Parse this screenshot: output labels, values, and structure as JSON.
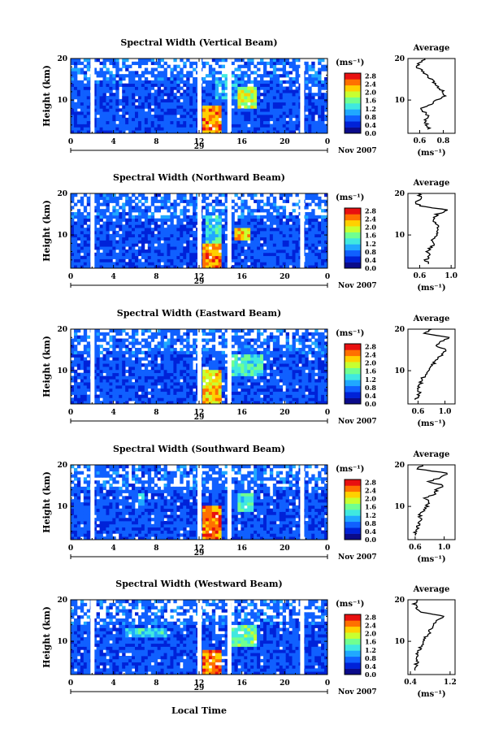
{
  "figure": {
    "xlabel": "Local Time",
    "date_label": "Nov 2007",
    "day_label": "29"
  },
  "colors": {
    "scale": [
      "#0b0b8a",
      "#0022d8",
      "#1060ff",
      "#20a8ff",
      "#40e8e0",
      "#70ff90",
      "#c8ff30",
      "#ffd000",
      "#ff7000",
      "#e81010"
    ],
    "axis": "#000000",
    "missing": "#ffffff"
  },
  "chart_data": [
    {
      "type": "heatmap",
      "title": "Spectral Width (Vertical Beam)",
      "ylabel": "Height (km)",
      "xlim": [
        0,
        24
      ],
      "ylim": [
        2,
        20
      ],
      "x_ticks": [
        "0",
        "4",
        "8",
        "12",
        "16",
        "20",
        "0"
      ],
      "y_ticks": [
        "10",
        "20"
      ],
      "cbar_unit": "(ms⁻¹)",
      "cbar_ticks": [
        "0.0",
        "0.4",
        "0.8",
        "1.2",
        "1.6",
        "2.0",
        "2.4",
        "2.8"
      ],
      "gaps_hours": [
        2.0,
        12.0,
        14.8,
        21.6
      ],
      "hot_regions": [
        {
          "t": [
            12.4,
            14.0
          ],
          "h": [
            2,
            9
          ],
          "level": 0.95
        },
        {
          "t": [
            15.5,
            17.5
          ],
          "h": [
            8,
            13
          ],
          "level": 0.75
        },
        {
          "t": [
            13.5,
            15.5
          ],
          "h": [
            10,
            16
          ],
          "level": 0.5
        }
      ],
      "profile": {
        "title": "Average",
        "xlabel": "(ms⁻¹)",
        "x_ticks": [
          "0.6",
          "0.8"
        ],
        "y_ticks": [
          "10",
          "20"
        ],
        "xlim": [
          0.5,
          0.9
        ],
        "heights": [
          3,
          4,
          5,
          6,
          7,
          8,
          9,
          10,
          11,
          12,
          13,
          14,
          15,
          16,
          17,
          18,
          19,
          20
        ],
        "values": [
          0.68,
          0.66,
          0.65,
          0.67,
          0.64,
          0.62,
          0.7,
          0.74,
          0.82,
          0.8,
          0.76,
          0.72,
          0.7,
          0.66,
          0.62,
          0.58,
          0.6,
          0.64
        ]
      }
    },
    {
      "type": "heatmap",
      "title": "Spectral Width (Northward Beam)",
      "ylabel": "Height (km)",
      "xlim": [
        0,
        24
      ],
      "ylim": [
        2,
        20
      ],
      "x_ticks": [
        "0",
        "4",
        "8",
        "12",
        "16",
        "20",
        "0"
      ],
      "y_ticks": [
        "10",
        "20"
      ],
      "cbar_unit": "(ms⁻¹)",
      "cbar_ticks": [
        "0.0",
        "0.4",
        "0.8",
        "1.2",
        "1.6",
        "2.0",
        "2.4",
        "2.8"
      ],
      "gaps_hours": [
        2.0,
        12.0,
        14.8,
        21.6
      ],
      "hot_regions": [
        {
          "t": [
            12.3,
            14.2
          ],
          "h": [
            2,
            8
          ],
          "level": 0.95
        },
        {
          "t": [
            15.3,
            16.8
          ],
          "h": [
            9,
            12
          ],
          "level": 0.85
        },
        {
          "t": [
            12.5,
            14.0
          ],
          "h": [
            8,
            15
          ],
          "level": 0.55
        }
      ],
      "profile": {
        "title": "Average",
        "xlabel": "(ms⁻¹)",
        "x_ticks": [
          "0.6",
          "1.0"
        ],
        "y_ticks": [
          "10",
          "20"
        ],
        "xlim": [
          0.45,
          1.05
        ],
        "heights": [
          3,
          4,
          5,
          6,
          7,
          8,
          9,
          10,
          11,
          12,
          13,
          14,
          15,
          16,
          17,
          18,
          19,
          20
        ],
        "values": [
          0.7,
          0.68,
          0.72,
          0.7,
          0.74,
          0.78,
          0.76,
          0.8,
          0.84,
          0.82,
          0.8,
          0.78,
          0.82,
          0.95,
          0.6,
          0.55,
          0.62,
          0.58
        ]
      }
    },
    {
      "type": "heatmap",
      "title": "Spectral Width (Eastward Beam)",
      "ylabel": "Height (km)",
      "xlim": [
        0,
        24
      ],
      "ylim": [
        2,
        20
      ],
      "x_ticks": [
        "0",
        "4",
        "8",
        "12",
        "16",
        "20",
        "0"
      ],
      "y_ticks": [
        "10",
        "20"
      ],
      "cbar_unit": "(ms⁻¹)",
      "cbar_ticks": [
        "0.0",
        "0.4",
        "0.8",
        "1.2",
        "1.6",
        "2.0",
        "2.4",
        "2.8"
      ],
      "gaps_hours": [
        2.0,
        12.0,
        14.8
      ],
      "hot_regions": [
        {
          "t": [
            12.4,
            14.0
          ],
          "h": [
            2,
            10
          ],
          "level": 0.85
        },
        {
          "t": [
            15.0,
            18.0
          ],
          "h": [
            9,
            14
          ],
          "level": 0.6
        }
      ],
      "profile": {
        "title": "Average",
        "xlabel": "(ms⁻¹)",
        "x_ticks": [
          "0.6",
          "1.0"
        ],
        "y_ticks": [
          "10",
          "20"
        ],
        "xlim": [
          0.45,
          1.15
        ],
        "heights": [
          3,
          4,
          5,
          6,
          7,
          8,
          9,
          10,
          11,
          12,
          13,
          14,
          15,
          16,
          17,
          18,
          19,
          20
        ],
        "values": [
          0.58,
          0.6,
          0.62,
          0.6,
          0.64,
          0.66,
          0.7,
          0.74,
          0.8,
          0.84,
          0.9,
          0.96,
          1.02,
          0.88,
          0.95,
          1.05,
          0.7,
          0.8
        ]
      }
    },
    {
      "type": "heatmap",
      "title": "Spectral Width (Southward Beam)",
      "ylabel": "Height (km)",
      "xlim": [
        0,
        24
      ],
      "ylim": [
        2,
        20
      ],
      "x_ticks": [
        "0",
        "4",
        "8",
        "12",
        "16",
        "20",
        "0"
      ],
      "y_ticks": [
        "10",
        "20"
      ],
      "cbar_unit": "(ms⁻¹)",
      "cbar_ticks": [
        "0.0",
        "0.4",
        "0.8",
        "1.2",
        "1.6",
        "2.0",
        "2.4",
        "2.8"
      ],
      "gaps_hours": [
        2.0,
        12.0,
        14.8,
        21.6
      ],
      "hot_regions": [
        {
          "t": [
            12.4,
            14.0
          ],
          "h": [
            2,
            10
          ],
          "level": 0.95
        },
        {
          "t": [
            15.5,
            17.0
          ],
          "h": [
            9,
            13
          ],
          "level": 0.6
        },
        {
          "t": [
            6.3,
            6.8
          ],
          "h": [
            10,
            13
          ],
          "level": 0.55
        }
      ],
      "profile": {
        "title": "Average",
        "xlabel": "(ms⁻¹)",
        "x_ticks": [
          "0.6",
          "1.0"
        ],
        "y_ticks": [
          "10",
          "20"
        ],
        "xlim": [
          0.5,
          1.15
        ],
        "heights": [
          3,
          4,
          5,
          6,
          7,
          8,
          9,
          10,
          11,
          12,
          13,
          14,
          15,
          16,
          17,
          18,
          19,
          20
        ],
        "values": [
          0.62,
          0.6,
          0.64,
          0.66,
          0.68,
          0.66,
          0.72,
          0.76,
          0.8,
          0.74,
          0.86,
          0.9,
          1.0,
          0.78,
          0.96,
          1.05,
          0.62,
          0.7
        ]
      }
    },
    {
      "type": "heatmap",
      "title": "Spectral Width (Westward Beam)",
      "ylabel": "Height (km)",
      "xlim": [
        0,
        24
      ],
      "ylim": [
        2,
        20
      ],
      "x_ticks": [
        "0",
        "4",
        "8",
        "12",
        "16",
        "20",
        "0"
      ],
      "y_ticks": [
        "10",
        "20"
      ],
      "cbar_unit": "(ms⁻¹)",
      "cbar_ticks": [
        "0.0",
        "0.4",
        "0.8",
        "1.2",
        "1.6",
        "2.0",
        "2.4",
        "2.8"
      ],
      "gaps_hours": [
        2.0,
        12.0,
        14.8,
        21.6
      ],
      "hot_regions": [
        {
          "t": [
            12.4,
            14.0
          ],
          "h": [
            2,
            8
          ],
          "level": 0.95
        },
        {
          "t": [
            14.8,
            17.5
          ],
          "h": [
            9,
            14
          ],
          "level": 0.65
        },
        {
          "t": [
            5.0,
            9.0
          ],
          "h": [
            11,
            13
          ],
          "level": 0.55
        }
      ],
      "profile": {
        "title": "Average",
        "xlabel": "(ms⁻¹)",
        "x_ticks": [
          "0.4",
          "1.2"
        ],
        "y_ticks": [
          "10",
          "20"
        ],
        "xlim": [
          0.35,
          1.3
        ],
        "heights": [
          3,
          4,
          5,
          6,
          7,
          8,
          9,
          10,
          11,
          12,
          13,
          14,
          15,
          16,
          17,
          18,
          19,
          20
        ],
        "values": [
          0.52,
          0.5,
          0.54,
          0.56,
          0.55,
          0.58,
          0.62,
          0.66,
          0.7,
          0.78,
          0.82,
          0.88,
          0.95,
          1.1,
          0.6,
          0.52,
          0.48,
          0.55
        ]
      }
    }
  ]
}
